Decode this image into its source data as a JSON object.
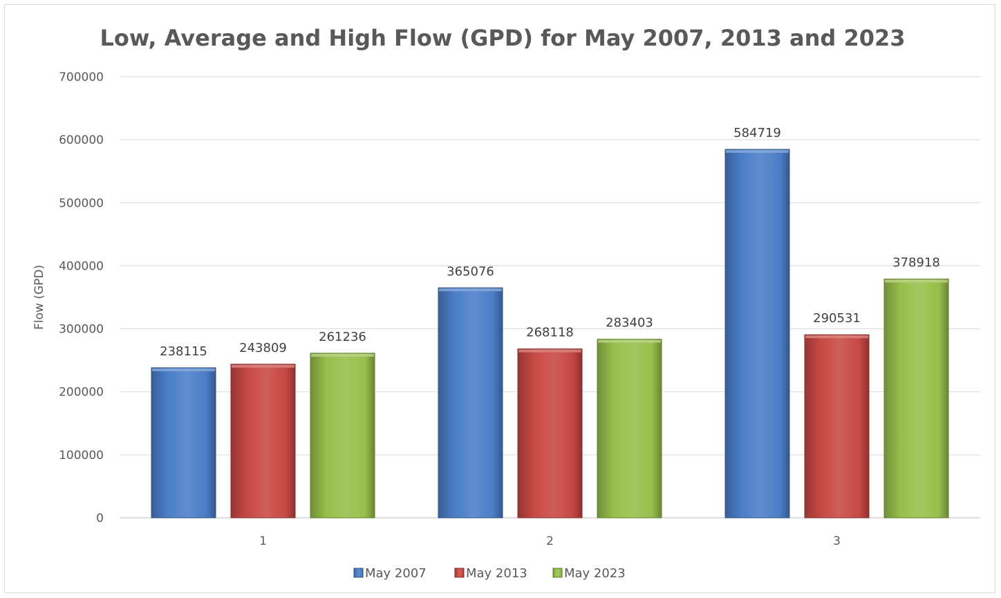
{
  "chart_data": {
    "type": "bar",
    "title": "Low, Average and High Flow (GPD) for May 2007, 2013 and 2023",
    "xlabel": "",
    "ylabel": "Flow (GPD)",
    "categories": [
      "1",
      "2",
      "3"
    ],
    "series": [
      {
        "name": "May 2007",
        "color": "#4a7ec8",
        "values": [
          238115,
          365076,
          584719
        ]
      },
      {
        "name": "May 2013",
        "color": "#c84844",
        "values": [
          243809,
          268118,
          290531
        ]
      },
      {
        "name": "May 2023",
        "color": "#97bf4a",
        "values": [
          261236,
          283403,
          378918
        ]
      }
    ],
    "ylim": [
      0,
      700000
    ],
    "yticks": [
      "0",
      "100000",
      "200000",
      "300000",
      "400000",
      "500000",
      "600000",
      "700000"
    ],
    "grid": true,
    "legend_position": "bottom"
  }
}
